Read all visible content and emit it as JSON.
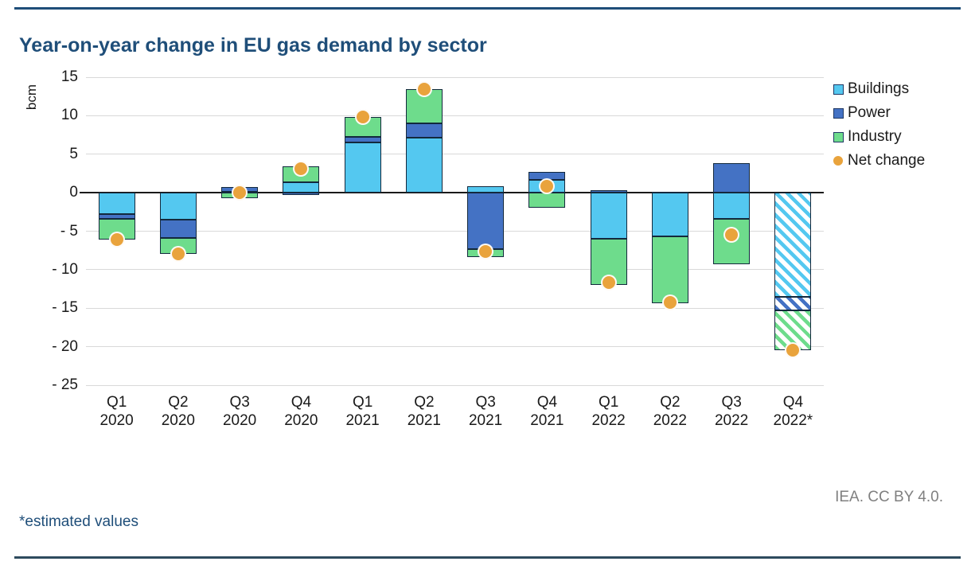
{
  "page": {
    "title": "Year-on-year change in EU gas demand by sector",
    "footnote": "*estimated values",
    "attribution": "IEA. CC BY 4.0."
  },
  "chart_data": {
    "type": "bar",
    "subtype": "stacked-bar-with-net-markers",
    "title": "Year-on-year change in EU gas demand by sector",
    "ylabel": "bcm",
    "ylim": [
      -25,
      15
    ],
    "yticks": [
      15,
      10,
      5,
      0,
      -5,
      -10,
      -15,
      -20,
      -25
    ],
    "grid": true,
    "legend_position": "right",
    "categories": [
      {
        "label": "Q1 2020",
        "estimated": false
      },
      {
        "label": "Q2 2020",
        "estimated": false
      },
      {
        "label": "Q3 2020",
        "estimated": false
      },
      {
        "label": "Q4 2020",
        "estimated": false
      },
      {
        "label": "Q1 2021",
        "estimated": false
      },
      {
        "label": "Q2 2021",
        "estimated": false
      },
      {
        "label": "Q3 2021",
        "estimated": false
      },
      {
        "label": "Q4 2021",
        "estimated": false
      },
      {
        "label": "Q1 2022",
        "estimated": false
      },
      {
        "label": "Q2 2022",
        "estimated": false
      },
      {
        "label": "Q3 2022",
        "estimated": false
      },
      {
        "label": "Q4 2022*",
        "estimated": true
      }
    ],
    "series": [
      {
        "name": "Buildings",
        "color": "#54c8f0",
        "values": [
          -2.8,
          -3.5,
          0.1,
          1.4,
          6.5,
          7.1,
          0.8,
          1.7,
          -6.0,
          -5.7,
          -3.4,
          -13.5
        ]
      },
      {
        "name": "Power",
        "color": "#4472c4",
        "values": [
          -0.6,
          -2.4,
          0.6,
          -0.3,
          0.7,
          1.9,
          -7.3,
          1.0,
          0.3,
          0.1,
          3.8,
          -1.8
        ]
      },
      {
        "name": "Industry",
        "color": "#6edc8c",
        "values": [
          -2.7,
          -2.0,
          -0.7,
          2.0,
          2.6,
          4.5,
          -1.1,
          -1.9,
          -6.0,
          -8.7,
          -5.9,
          -5.2
        ]
      }
    ],
    "net_change": {
      "name": "Net change",
      "color": "#e9a33c",
      "values": [
        -6.1,
        -7.9,
        0.0,
        3.1,
        9.8,
        13.5,
        -7.6,
        0.8,
        -11.7,
        -14.3,
        -5.5,
        -20.5
      ]
    }
  }
}
